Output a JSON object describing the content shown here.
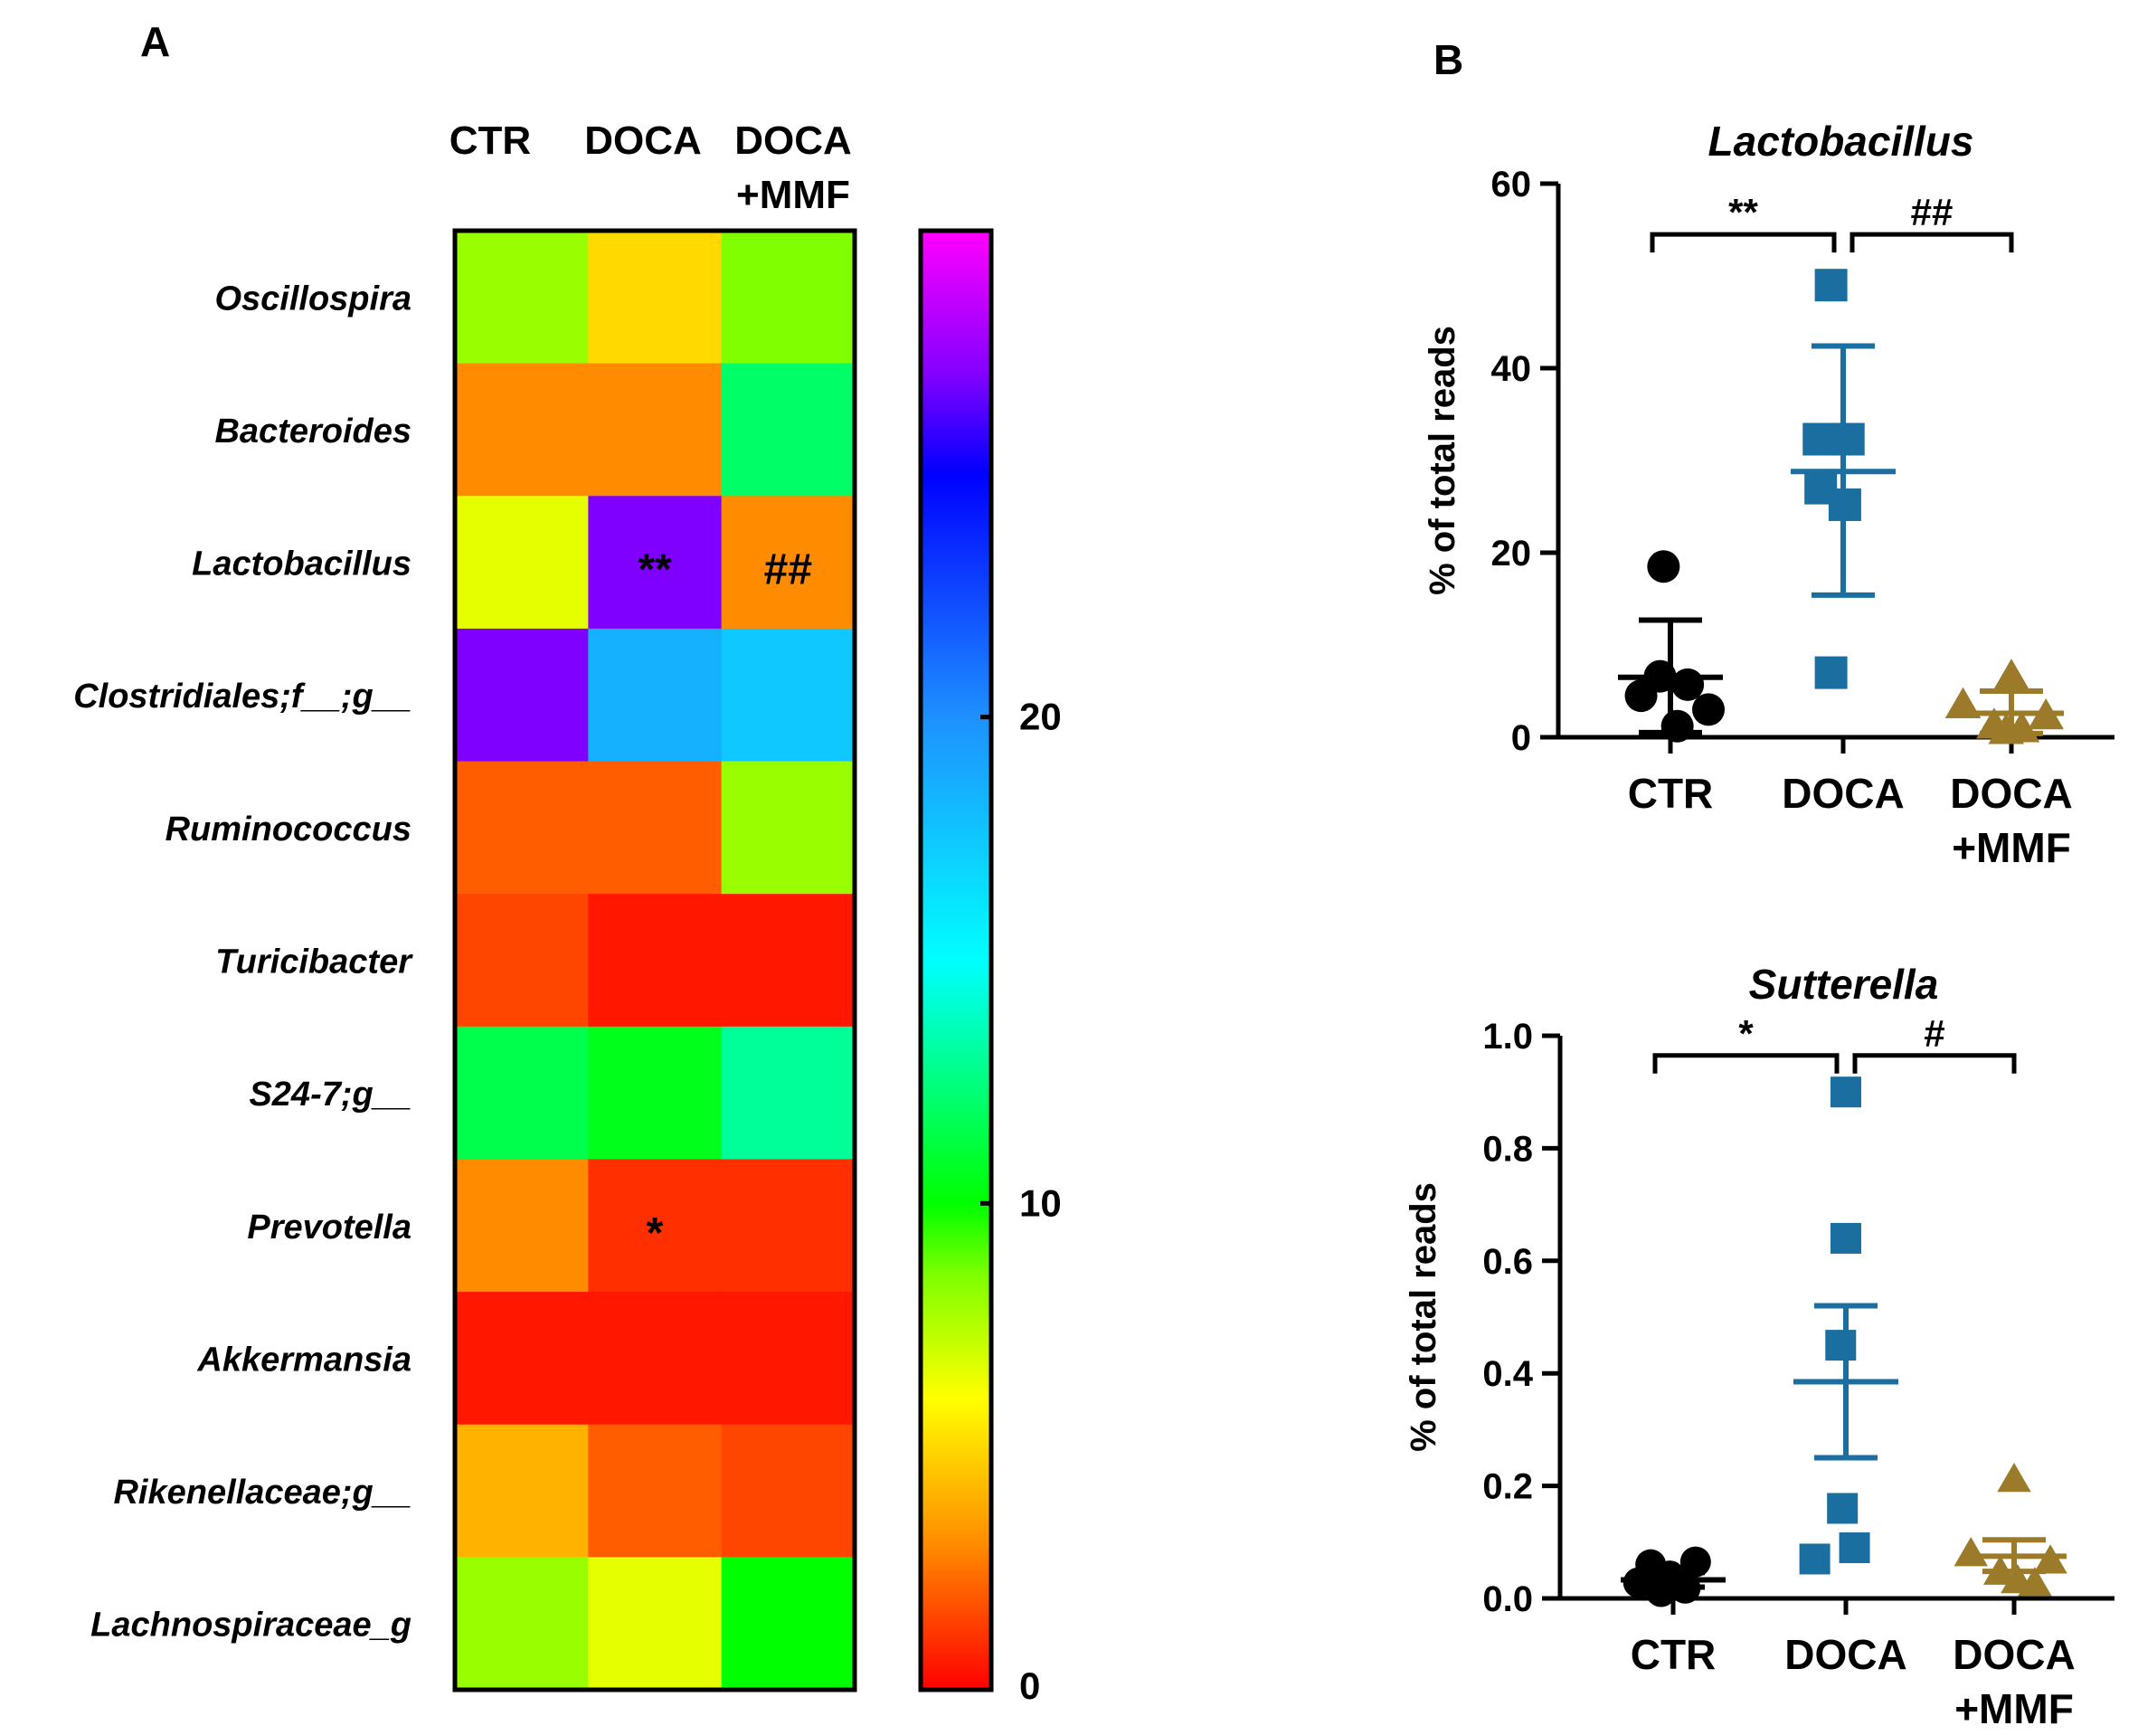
{
  "panel_labels": {
    "a": "A",
    "b": "B"
  },
  "chart_data": [
    {
      "type": "heatmap",
      "panel": "A",
      "columns": [
        "CTR",
        "DOCA",
        "DOCA\n+MMF"
      ],
      "column_labels": {
        "ctr": "CTR",
        "doca": "DOCA",
        "mmf_line1": "DOCA",
        "mmf_line2": "+MMF"
      },
      "rows": [
        "Oscillospira",
        "Bacteroides",
        "Lactobacillus",
        "Clostridiales;f__;g__",
        "Ruminococcus",
        "Turicibacter",
        "S24-7;g__",
        "Prevotella",
        "Akkermansia",
        "Rikenellaceae;g__",
        "Lachnospiraceae_g"
      ],
      "values": [
        [
          8.0,
          5.0,
          8.5
        ],
        [
          3.0,
          3.0,
          12.0
        ],
        [
          6.5,
          27.0,
          3.0
        ],
        [
          27.0,
          18.5,
          17.5
        ],
        [
          2.0,
          2.0,
          8.0
        ],
        [
          1.5,
          0.5,
          0.5
        ],
        [
          11.5,
          10.5,
          13.0
        ],
        [
          3.0,
          1.0,
          1.0
        ],
        [
          0.5,
          0.5,
          0.5
        ],
        [
          4.0,
          2.0,
          1.5
        ],
        [
          8.0,
          6.5,
          10.0
        ]
      ],
      "annotations": [
        {
          "row": 2,
          "col": 1,
          "text": "**"
        },
        {
          "row": 2,
          "col": 2,
          "text": "##"
        },
        {
          "row": 7,
          "col": 1,
          "text": "*"
        }
      ],
      "colorbar": {
        "range": [
          0,
          30
        ],
        "ticks": [
          {
            "value": 0,
            "label": "0"
          },
          {
            "value": 10,
            "label": "10"
          },
          {
            "value": 20,
            "label": "20"
          }
        ],
        "stops": [
          {
            "value": 0,
            "color": "#ff0000"
          },
          {
            "value": 3,
            "color": "#ff8c00"
          },
          {
            "value": 6,
            "color": "#ffff00"
          },
          {
            "value": 8.5,
            "color": "#80ff00"
          },
          {
            "value": 10,
            "color": "#00ff00"
          },
          {
            "value": 15,
            "color": "#00ffff"
          },
          {
            "value": 20,
            "color": "#1e90ff"
          },
          {
            "value": 25,
            "color": "#0000ff"
          },
          {
            "value": 27,
            "color": "#8000ff"
          },
          {
            "value": 30,
            "color": "#ff00ff"
          }
        ]
      }
    },
    {
      "type": "scatter",
      "panel": "B",
      "title": "Lactobacillus",
      "ylabel": "% of total reads",
      "ylim": [
        0,
        60
      ],
      "yticks": [
        {
          "value": 0,
          "label": "0"
        },
        {
          "value": 20,
          "label": "20"
        },
        {
          "value": 40,
          "label": "40"
        },
        {
          "value": 60,
          "label": "60"
        }
      ],
      "categories": [
        {
          "line1": "CTR",
          "line2": ""
        },
        {
          "line1": "DOCA",
          "line2": ""
        },
        {
          "line1": "DOCA",
          "line2": "+MMF"
        }
      ],
      "series": [
        {
          "name": "CTR",
          "marker": "circle",
          "color": "#000000",
          "mean": 6.5,
          "sem_low": 0.5,
          "sem_high": 12.7,
          "points": [
            {
              "y": 18.5,
              "dx": -0.04
            },
            {
              "y": 6.6,
              "dx": -0.06
            },
            {
              "y": 4.5,
              "dx": -0.17
            },
            {
              "y": 5.7,
              "dx": 0.1
            },
            {
              "y": 3.0,
              "dx": 0.22
            },
            {
              "y": 1.2,
              "dx": 0.04
            }
          ]
        },
        {
          "name": "DOCA",
          "marker": "square",
          "color": "#1b6fa0",
          "mean": 28.8,
          "sem_low": 15.4,
          "sem_high": 42.4,
          "points": [
            {
              "y": 49.0,
              "dx": -0.07
            },
            {
              "y": 32.3,
              "dx": -0.14
            },
            {
              "y": 32.3,
              "dx": 0.03
            },
            {
              "y": 27.0,
              "dx": -0.13
            },
            {
              "y": 25.2,
              "dx": 0.01
            },
            {
              "y": 7.0,
              "dx": -0.07
            }
          ]
        },
        {
          "name": "DOCA+MMF",
          "marker": "triangle",
          "color": "#9b7a2a",
          "mean": 2.6,
          "sem_low": 0.4,
          "sem_high": 5.0,
          "points": [
            {
              "y": 6.5,
              "dx": 0.0
            },
            {
              "y": 3.4,
              "dx": -0.28
            },
            {
              "y": 2.2,
              "dx": 0.2
            },
            {
              "y": 1.2,
              "dx": -0.1
            },
            {
              "y": 0.8,
              "dx": 0.06
            },
            {
              "y": 0.6,
              "dx": -0.03
            }
          ]
        }
      ],
      "comparisons": [
        {
          "from": 0,
          "to": 1,
          "y": 54.5,
          "label": "**"
        },
        {
          "from": 1,
          "to": 2,
          "y": 54.5,
          "label": "##"
        }
      ]
    },
    {
      "type": "scatter",
      "panel": "B",
      "title": "Sutterella",
      "ylabel": "% of total reads",
      "ylim": [
        0,
        1.0
      ],
      "yticks": [
        {
          "value": 0,
          "label": "0.0"
        },
        {
          "value": 0.2,
          "label": "0.2"
        },
        {
          "value": 0.4,
          "label": "0.4"
        },
        {
          "value": 0.6,
          "label": "0.6"
        },
        {
          "value": 0.8,
          "label": "0.8"
        },
        {
          "value": 1.0,
          "label": "1.0"
        }
      ],
      "categories": [
        {
          "line1": "CTR",
          "line2": ""
        },
        {
          "line1": "DOCA",
          "line2": ""
        },
        {
          "line1": "DOCA",
          "line2": "+MMF"
        }
      ],
      "series": [
        {
          "name": "CTR",
          "marker": "circle",
          "color": "#000000",
          "mean": 0.033,
          "sem_low": 0.02,
          "sem_high": 0.046,
          "points": [
            {
              "y": 0.065,
              "dx": 0.13
            },
            {
              "y": 0.06,
              "dx": -0.13
            },
            {
              "y": 0.04,
              "dx": -0.02
            },
            {
              "y": 0.028,
              "dx": -0.2
            },
            {
              "y": 0.018,
              "dx": 0.07
            },
            {
              "y": 0.012,
              "dx": -0.07
            }
          ]
        },
        {
          "name": "DOCA",
          "marker": "square",
          "color": "#1b6fa0",
          "mean": 0.385,
          "sem_low": 0.25,
          "sem_high": 0.52,
          "points": [
            {
              "y": 0.9,
              "dx": 0.0
            },
            {
              "y": 0.64,
              "dx": 0.0
            },
            {
              "y": 0.45,
              "dx": -0.03
            },
            {
              "y": 0.16,
              "dx": -0.02
            },
            {
              "y": 0.09,
              "dx": 0.05
            },
            {
              "y": 0.07,
              "dx": -0.18
            }
          ]
        },
        {
          "name": "DOCA+MMF",
          "marker": "triangle",
          "color": "#9b7a2a",
          "mean": 0.075,
          "sem_low": 0.048,
          "sem_high": 0.104,
          "points": [
            {
              "y": 0.21,
              "dx": 0.0
            },
            {
              "y": 0.078,
              "dx": -0.25
            },
            {
              "y": 0.065,
              "dx": 0.21
            },
            {
              "y": 0.045,
              "dx": -0.08
            },
            {
              "y": 0.03,
              "dx": 0.02
            },
            {
              "y": 0.025,
              "dx": 0.12
            }
          ]
        }
      ],
      "comparisons": [
        {
          "from": 0,
          "to": 1,
          "y": 0.965,
          "label": "*"
        },
        {
          "from": 1,
          "to": 2,
          "y": 0.965,
          "label": "#"
        }
      ]
    }
  ]
}
